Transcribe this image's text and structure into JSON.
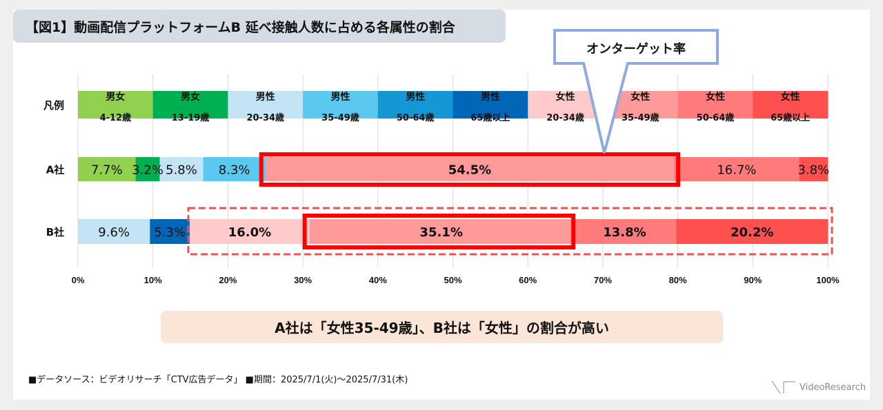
{
  "title": "【図1】動画配信プラットフォームB 延べ接触人数に占める各属性の割合",
  "callout": "オンターゲット率",
  "summary": "A社は「女性35-49歳」、B社は「女性」の割合が高い",
  "footer": "■データソース：ビデオリサーチ「CTV広告データ」 ■期間：2025/7/1(火)～2025/7/31(木)",
  "logo": "VideoResearch",
  "chart_data": {
    "type": "bar",
    "orientation": "horizontal-stacked-100",
    "title": "【図1】動画配信プラットフォームB 延べ接触人数に占める各属性の割合",
    "legend_label": "凡例",
    "categories": [
      {
        "line1": "男女",
        "line2": "4-12歳",
        "color": "#92d050"
      },
      {
        "line1": "男女",
        "line2": "13-19歳",
        "color": "#00b050"
      },
      {
        "line1": "男性",
        "line2": "20-34歳",
        "color": "#c3e4f5"
      },
      {
        "line1": "男性",
        "line2": "35-49歳",
        "color": "#5bc8f0"
      },
      {
        "line1": "男性",
        "line2": "50-64歳",
        "color": "#1597d4"
      },
      {
        "line1": "男性",
        "line2": "65歳以上",
        "color": "#0066b8"
      },
      {
        "line1": "女性",
        "line2": "20-34歳",
        "color": "#ffcaca"
      },
      {
        "line1": "女性",
        "line2": "35-49歳",
        "color": "#ff9a9a"
      },
      {
        "line1": "女性",
        "line2": "50-64歳",
        "color": "#ff7b7b"
      },
      {
        "line1": "女性",
        "line2": "65歳以上",
        "color": "#ff5050"
      }
    ],
    "series": [
      {
        "name": "A社",
        "segments": [
          {
            "cat": 0,
            "value": 7.7,
            "label": "7.7%"
          },
          {
            "cat": 1,
            "value": 3.2,
            "label": "3.2%"
          },
          {
            "cat": 2,
            "value": 5.8,
            "label": "5.8%"
          },
          {
            "cat": 3,
            "value": 8.3,
            "label": "8.3%"
          },
          {
            "cat": 7,
            "value": 54.5,
            "label": "54.5%",
            "bold": true
          },
          {
            "cat": 8,
            "value": 16.7,
            "label": "16.7%"
          },
          {
            "cat": 9,
            "value": 3.8,
            "label": "3.8%"
          }
        ]
      },
      {
        "name": "B社",
        "segments": [
          {
            "cat": 2,
            "value": 9.6,
            "label": "9.6%"
          },
          {
            "cat": 5,
            "value": 5.3,
            "label": "5.3%"
          },
          {
            "cat": 6,
            "value": 16.0,
            "label": "16.0%",
            "bold": true
          },
          {
            "cat": 7,
            "value": 35.1,
            "label": "35.1%",
            "bold": true
          },
          {
            "cat": 8,
            "value": 13.8,
            "label": "13.8%",
            "bold": true
          },
          {
            "cat": 9,
            "value": 20.2,
            "label": "20.2%",
            "bold": true
          }
        ]
      }
    ],
    "xlim": [
      0,
      100
    ],
    "xticks": [
      "0%",
      "10%",
      "20%",
      "30%",
      "40%",
      "50%",
      "60%",
      "70%",
      "80%",
      "90%",
      "100%"
    ],
    "grid": true,
    "highlights": {
      "A社": {
        "from": 25.0,
        "to": 79.5,
        "style": "solid-red"
      },
      "B社_target": {
        "from": 30.6,
        "to": 65.7,
        "style": "solid-red"
      },
      "B社_female": {
        "from": 14.9,
        "to": 100,
        "style": "dashed-red"
      }
    },
    "highlight_color": "#ff0000",
    "callout_color": "#8faadc"
  }
}
